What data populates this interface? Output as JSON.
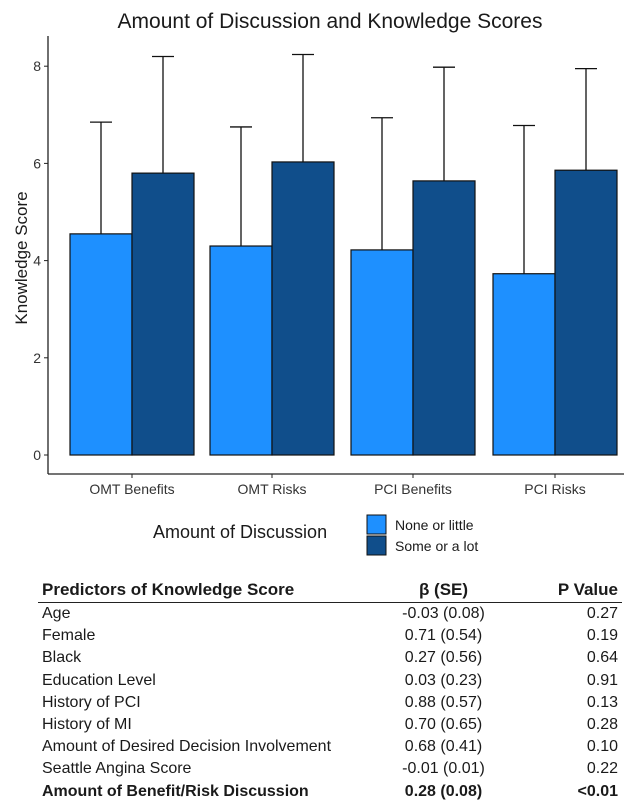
{
  "chart_data": {
    "type": "bar",
    "title": "Amount of Discussion and Knowledge Scores",
    "xlabel": "",
    "ylabel": "Knowledge Score",
    "ylim": [
      0,
      8.6
    ],
    "yticks": [
      0,
      2,
      4,
      6,
      8
    ],
    "categories": [
      "OMT Benefits",
      "OMT Risks",
      "PCI Benefits",
      "PCI Risks"
    ],
    "legend_title": "Amount of Discussion",
    "legend_position": "bottom",
    "series": [
      {
        "name": "None or little",
        "color": "#1E90FF",
        "values": [
          4.55,
          4.3,
          4.22,
          3.73
        ],
        "error_upper": [
          6.85,
          6.75,
          6.94,
          6.78
        ]
      },
      {
        "name": "Some or a lot",
        "color": "#104E8B",
        "values": [
          5.8,
          6.03,
          5.64,
          5.86
        ],
        "error_upper": [
          8.2,
          8.24,
          7.98,
          7.95
        ]
      }
    ]
  },
  "table": {
    "headers": [
      "Predictors of Knowledge Score",
      "β (SE)",
      "P Value"
    ],
    "rows": [
      {
        "predictor": "Age",
        "beta": "-0.03 (0.08)",
        "p": "0.27"
      },
      {
        "predictor": "Female",
        "beta": "0.71 (0.54)",
        "p": "0.19"
      },
      {
        "predictor": "Black",
        "beta": "0.27 (0.56)",
        "p": "0.64"
      },
      {
        "predictor": "Education Level",
        "beta": "0.03 (0.23)",
        "p": "0.91"
      },
      {
        "predictor": "History of PCI",
        "beta": "0.88 (0.57)",
        "p": "0.13"
      },
      {
        "predictor": "History of MI",
        "beta": "0.70 (0.65)",
        "p": "0.28"
      },
      {
        "predictor": "Amount of Desired Decision Involvement",
        "beta": "0.68 (0.41)",
        "p": "0.10"
      },
      {
        "predictor": "Seattle Angina Score",
        "beta": "-0.01 (0.01)",
        "p": "0.22"
      },
      {
        "predictor": "Amount of Benefit/Risk Discussion",
        "beta": "0.28 (0.08)",
        "p": "<0.01",
        "bold": true
      }
    ]
  }
}
